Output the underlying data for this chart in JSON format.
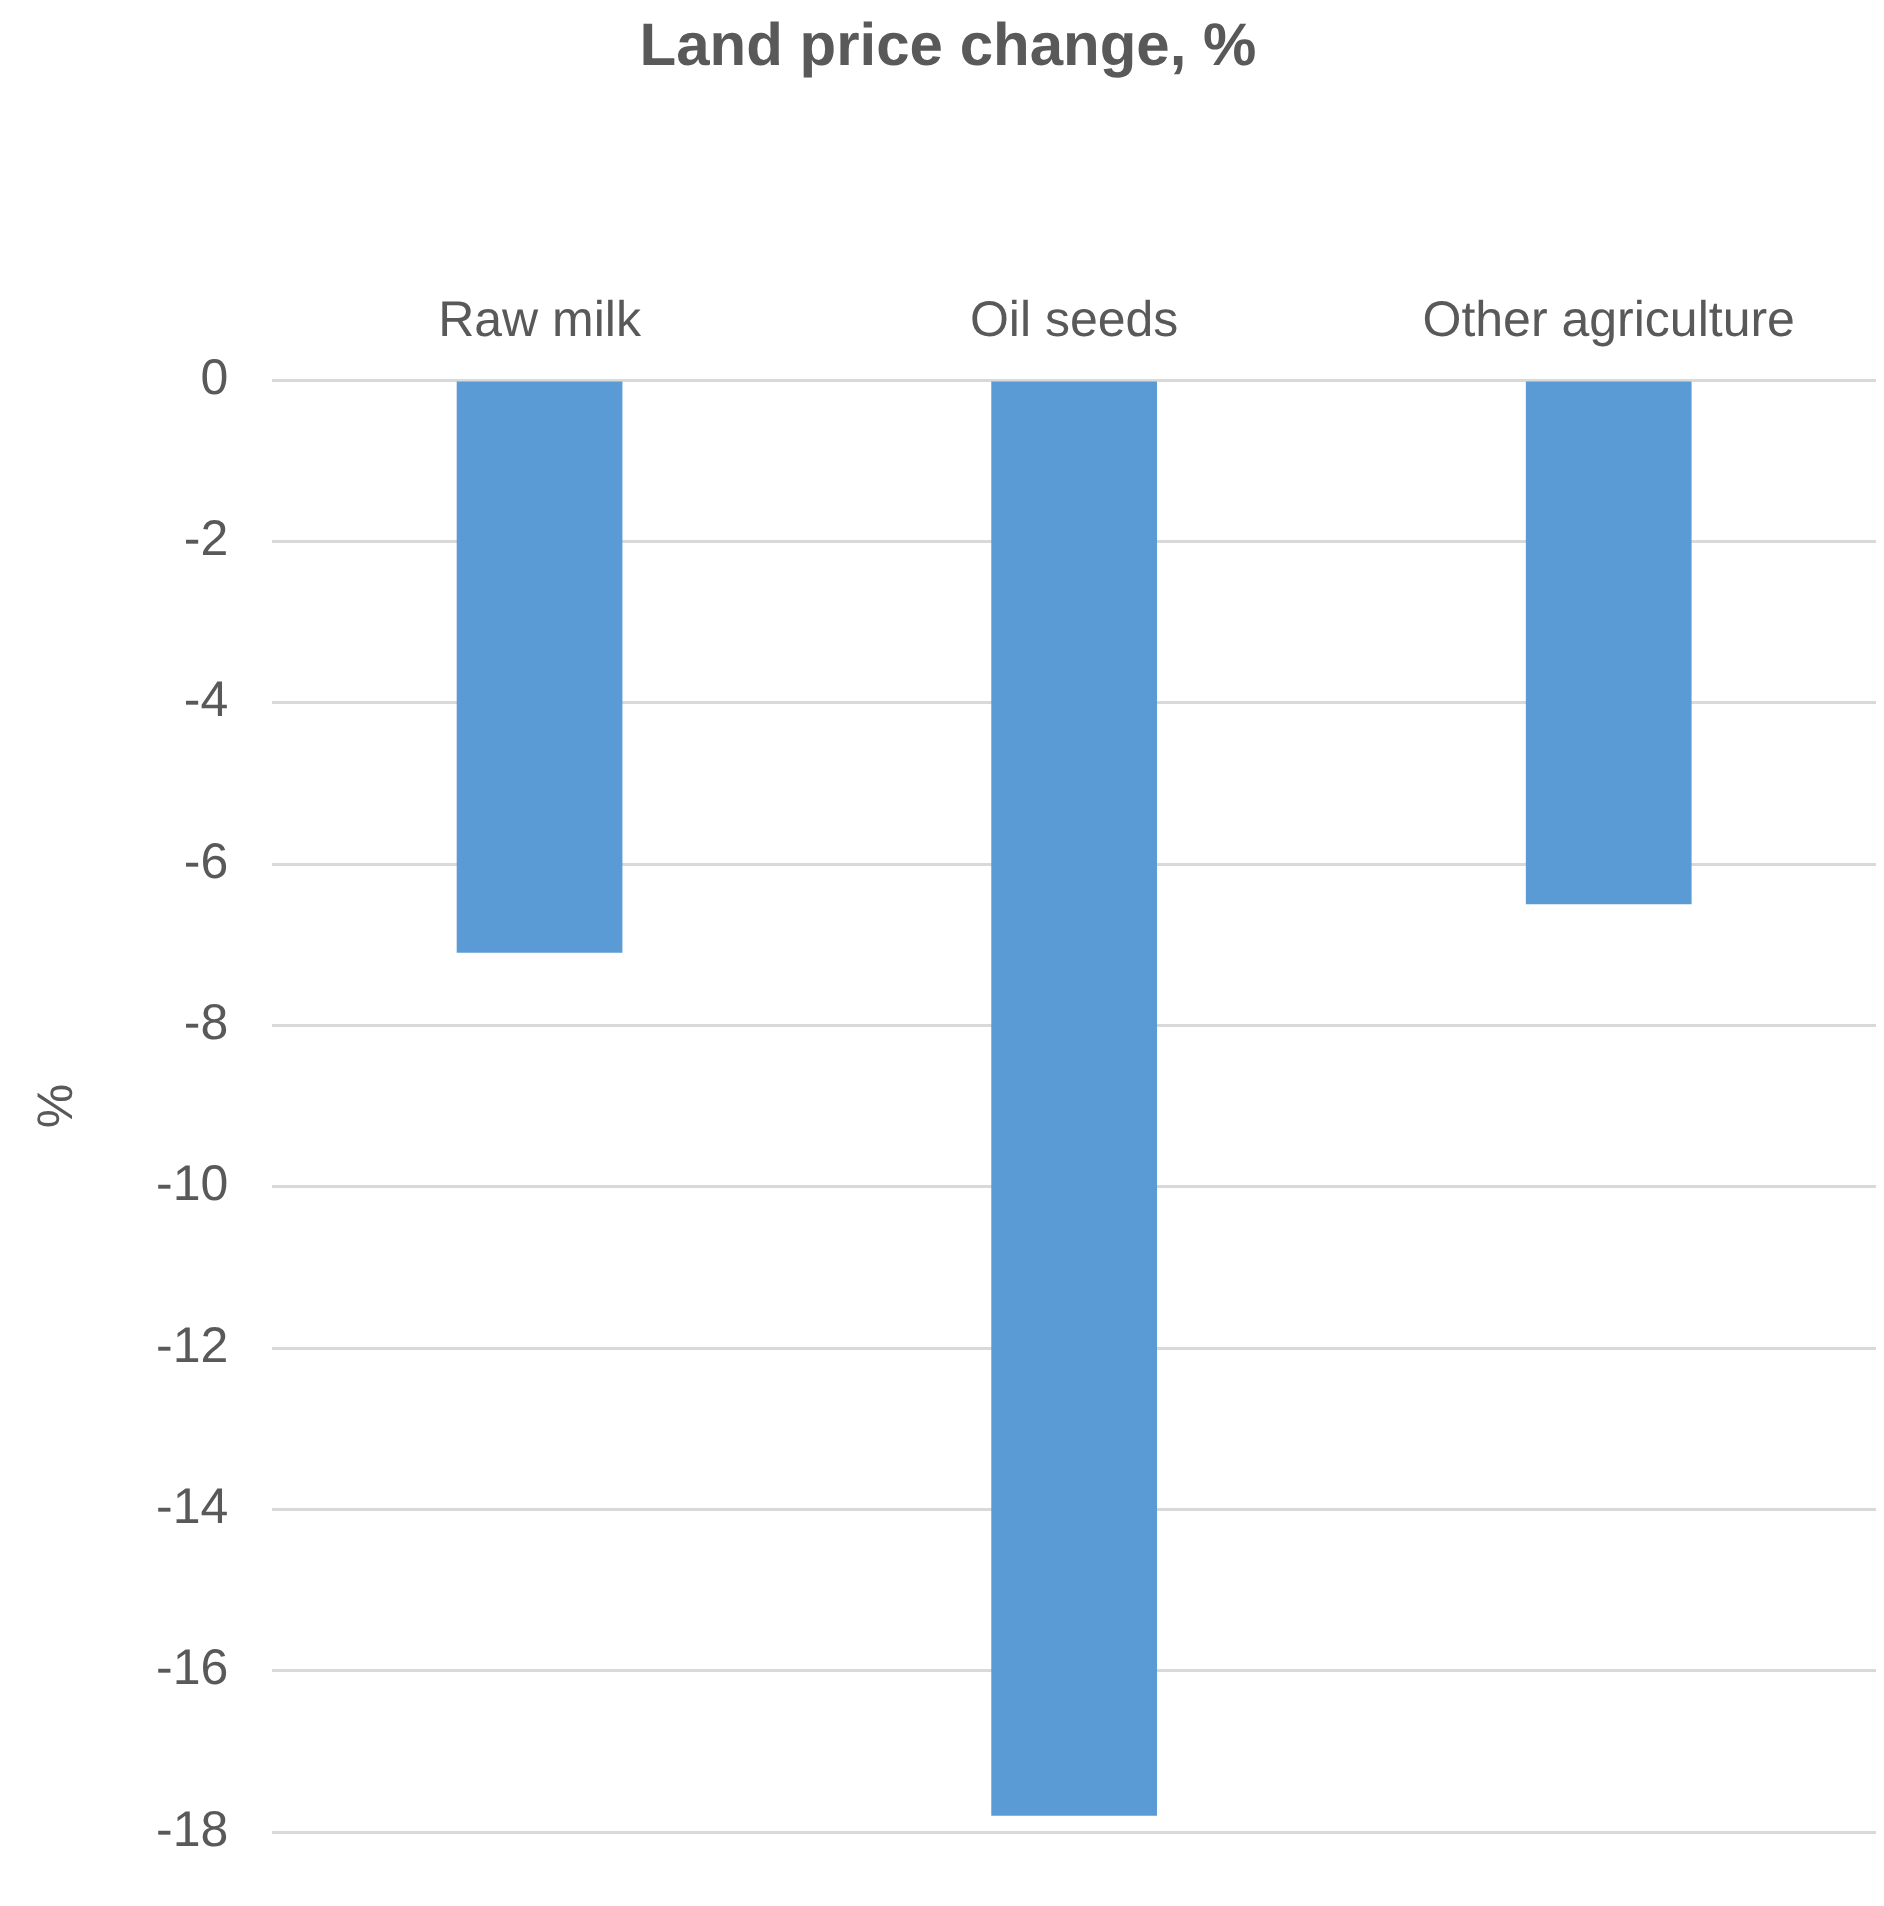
{
  "chart_data": {
    "type": "bar",
    "title": "Land price change, %",
    "ylabel": "%",
    "categories": [
      "Raw milk",
      "Oil seeds",
      "Other agriculture"
    ],
    "values": [
      -7.1,
      -17.8,
      -6.5
    ],
    "color": "#5b9bd5",
    "ylim": [
      -18,
      0
    ],
    "yticks": [
      0,
      -2,
      -4,
      -6,
      -8,
      -10,
      -12,
      -14,
      -16,
      -18
    ],
    "grid": "y"
  }
}
